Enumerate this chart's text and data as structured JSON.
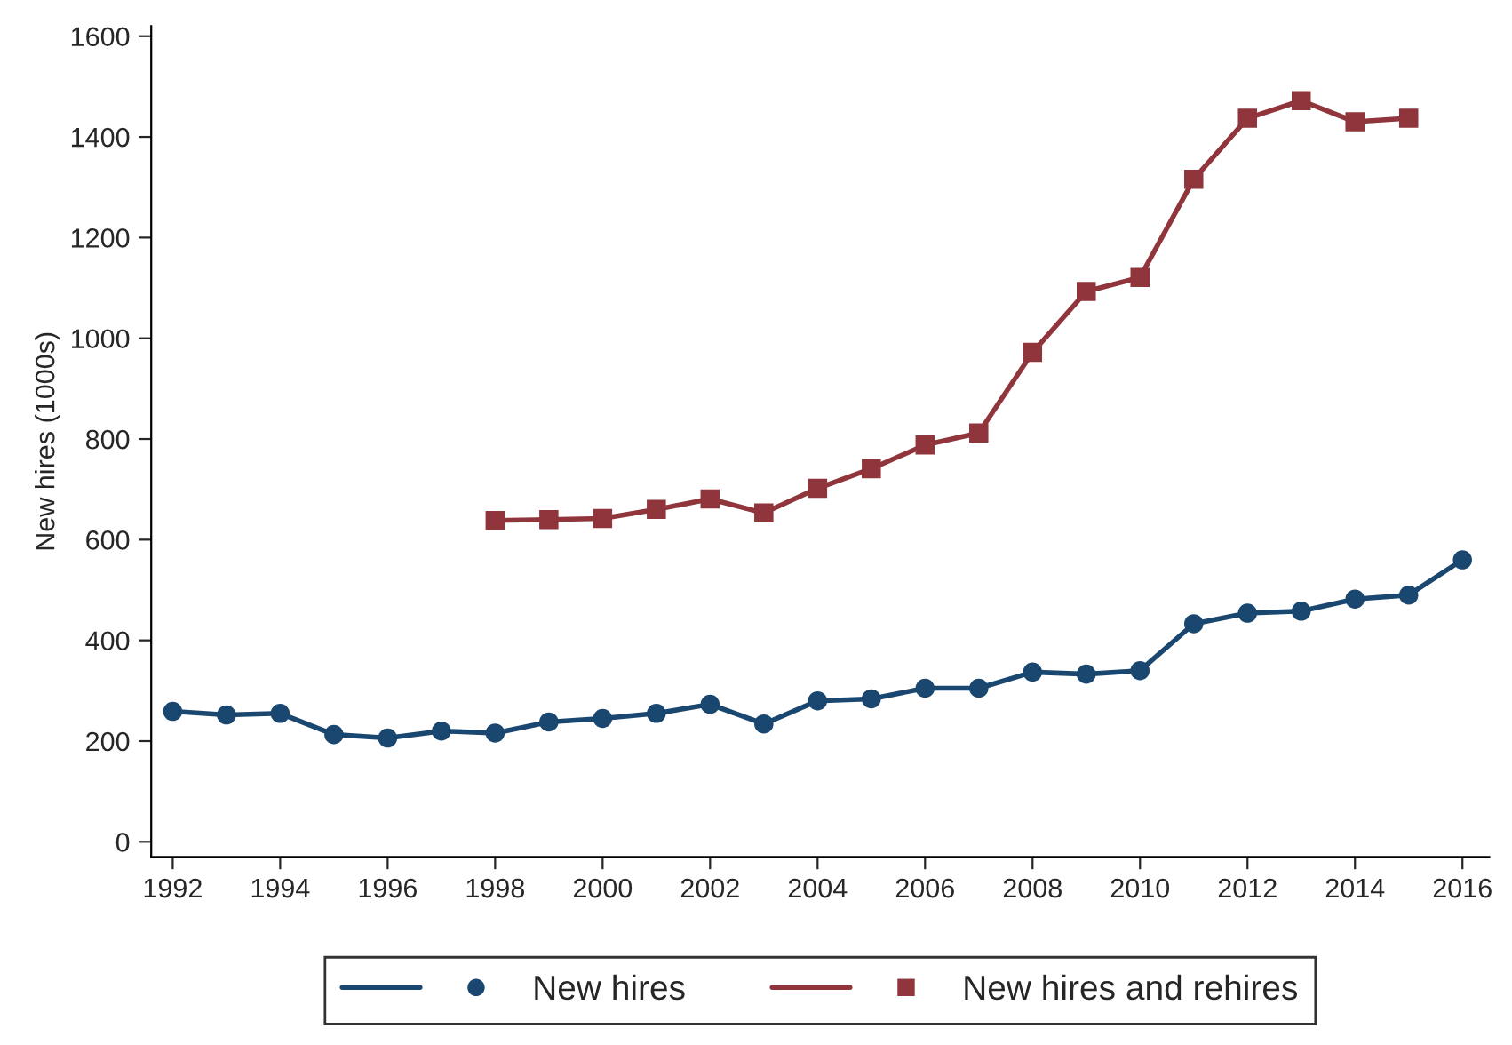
{
  "chart_data": {
    "type": "line",
    "ylabel": "New hires (1000s)",
    "xlim": [
      1991.6,
      2016.5
    ],
    "ylim": [
      -30,
      1620
    ],
    "xticks": [
      1992,
      1994,
      1996,
      1998,
      2000,
      2002,
      2004,
      2006,
      2008,
      2010,
      2012,
      2014,
      2016
    ],
    "yticks": [
      0,
      200,
      400,
      600,
      800,
      1000,
      1200,
      1400,
      1600
    ],
    "grid": false,
    "legend": "bottom",
    "series": [
      {
        "name": "New hires",
        "color": "#1a476f",
        "marker": "circle",
        "x": [
          1992,
          1993,
          1994,
          1995,
          1996,
          1997,
          1998,
          1999,
          2000,
          2001,
          2002,
          2003,
          2004,
          2005,
          2006,
          2007,
          2008,
          2009,
          2010,
          2011,
          2012,
          2013,
          2014,
          2015,
          2016
        ],
        "values": [
          259,
          252,
          255,
          213,
          206,
          220,
          216,
          238,
          245,
          255,
          273,
          234,
          280,
          284,
          305,
          305,
          337,
          333,
          340,
          433,
          454,
          458,
          482,
          490,
          560
        ]
      },
      {
        "name": "New hires and rehires",
        "color": "#90353b",
        "marker": "square",
        "x": [
          1998,
          1999,
          2000,
          2001,
          2002,
          2003,
          2004,
          2005,
          2006,
          2007,
          2008,
          2009,
          2010,
          2011,
          2012,
          2013,
          2014,
          2015
        ],
        "values": [
          638,
          640,
          642,
          660,
          681,
          653,
          702,
          741,
          788,
          812,
          972,
          1093,
          1121,
          1316,
          1437,
          1472,
          1430,
          1437
        ]
      }
    ]
  }
}
